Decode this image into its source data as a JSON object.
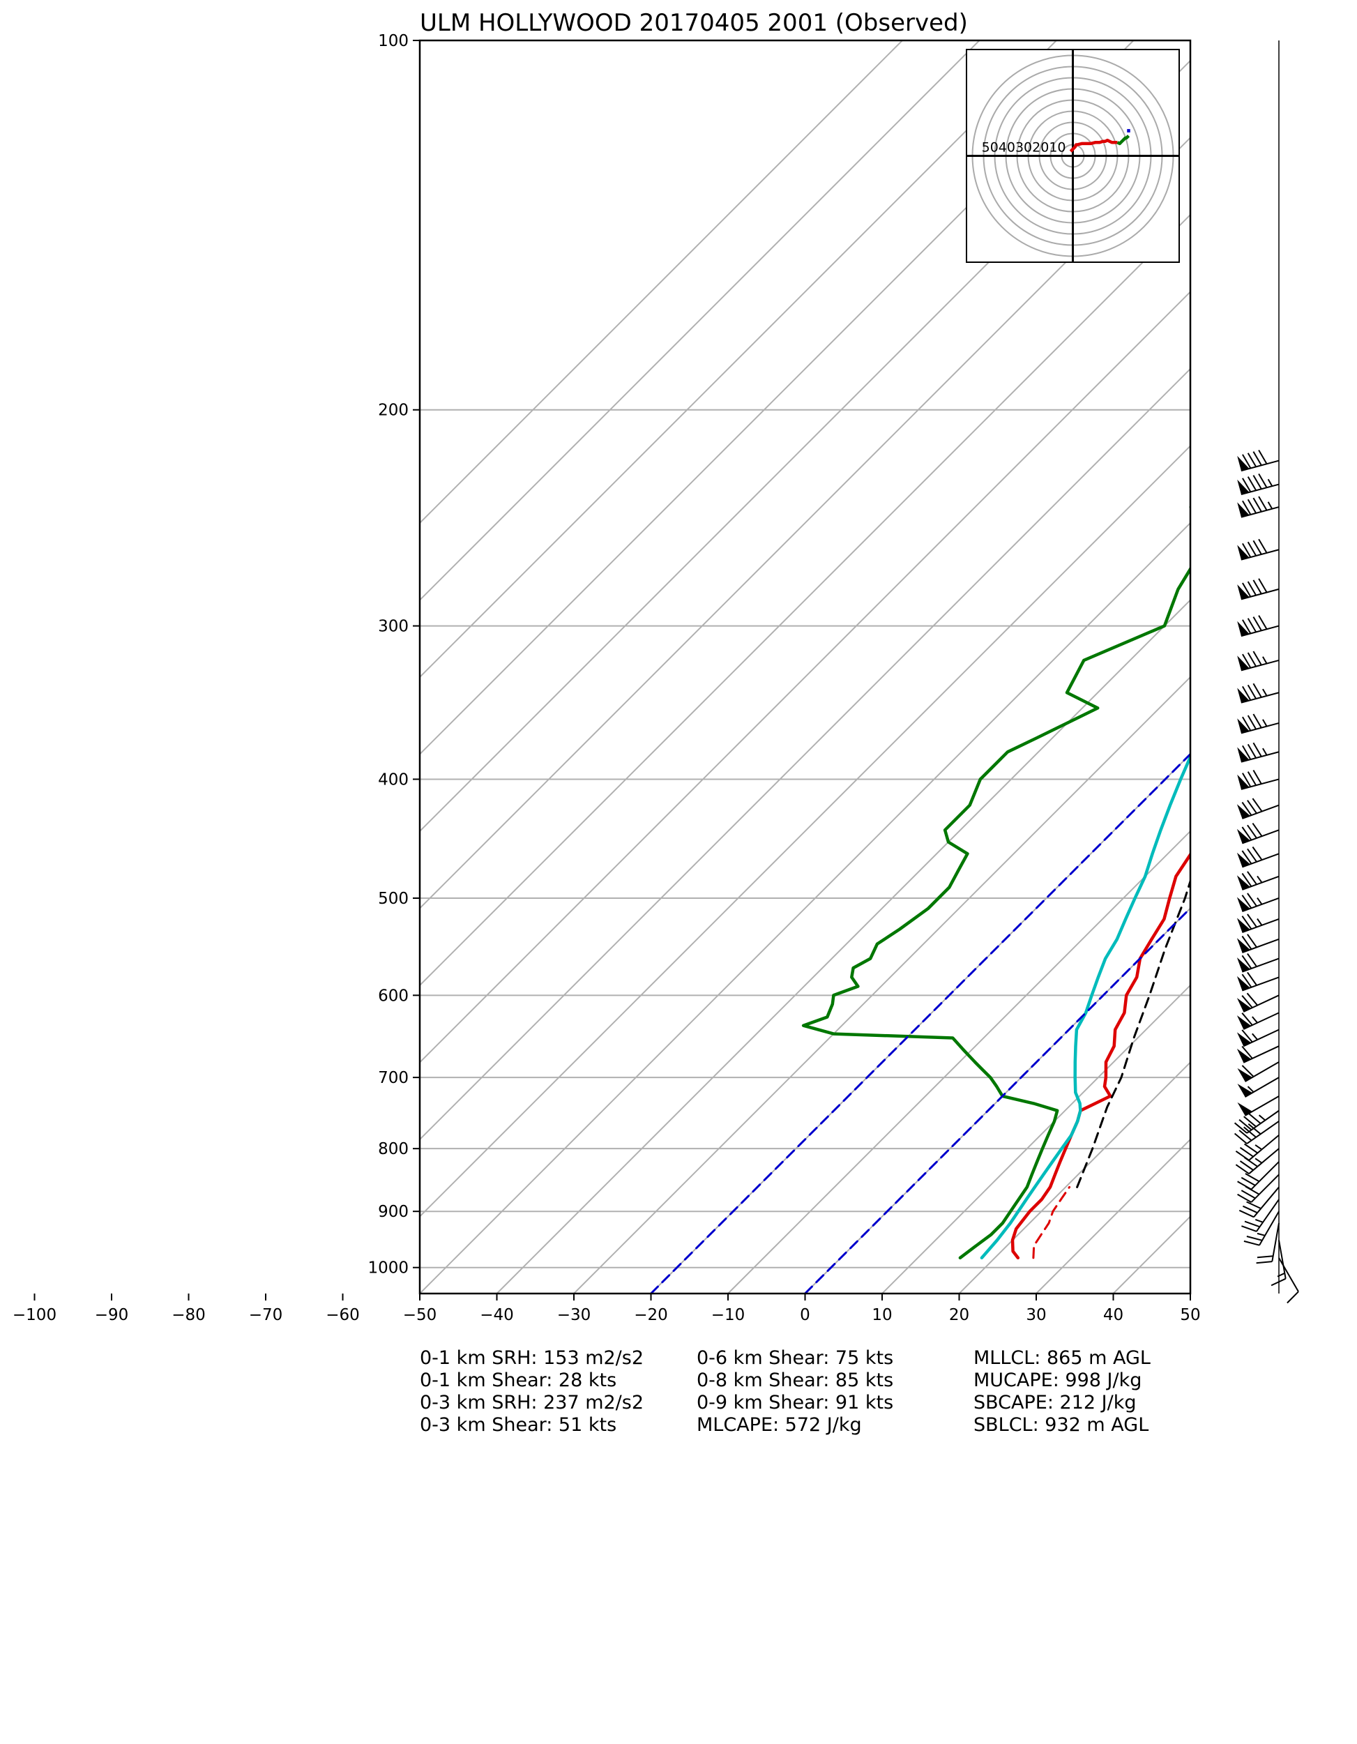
{
  "chart_data": {
    "type": "line",
    "title": "ULM HOLLYWOOD 20170405 2001   (Observed)",
    "x_ticks": [
      "−100",
      "−90",
      "−80",
      "−70",
      "−60",
      "−50",
      "−40",
      "−30",
      "−20",
      "−10",
      "0",
      "10",
      "20",
      "30",
      "40",
      "50"
    ],
    "y_ticks": [
      "100",
      "200",
      "300",
      "400",
      "500",
      "600",
      "700",
      "800",
      "900",
      "1000"
    ],
    "xlim": [
      -50,
      50
    ],
    "ylim": [
      1050,
      100
    ],
    "y_scale": "log",
    "skew_degrees": 45,
    "grid": true,
    "hodograph": {
      "ring_labels": [
        "50",
        "40",
        "30",
        "20",
        "10"
      ],
      "rings": [
        10,
        20,
        30,
        40,
        50,
        60,
        70,
        80,
        90
      ],
      "series": [
        {
          "color": "#dd0000",
          "u": [
            -2,
            0,
            2,
            3,
            4,
            8,
            12,
            16,
            20,
            24,
            27,
            29,
            31,
            33,
            35,
            38,
            40
          ],
          "v": [
            4,
            6,
            8,
            10,
            10,
            11,
            11,
            11,
            12,
            12,
            13,
            13,
            14,
            13,
            12,
            12,
            12
          ]
        },
        {
          "color": "#007700",
          "u": [
            40,
            42,
            43,
            44,
            45,
            46,
            47,
            48,
            49,
            50
          ],
          "v": [
            12,
            11,
            12,
            13,
            14,
            15,
            16,
            16,
            17,
            18
          ]
        },
        {
          "color": "#0000cc",
          "u": [
            50,
            50,
            50,
            50
          ],
          "v": [
            21,
            22,
            23,
            24
          ]
        }
      ]
    },
    "series": [
      {
        "color": "#dd0000",
        "style": "solid",
        "p": [
          982,
          970,
          950,
          930,
          900,
          880,
          860,
          840,
          820,
          800,
          780,
          760,
          745,
          735,
          725,
          712,
          700,
          680,
          660,
          640,
          620,
          600,
          580,
          560,
          540,
          520,
          500,
          480,
          460,
          440,
          420,
          400,
          380,
          360,
          340,
          320,
          300,
          280,
          260,
          240,
          220
        ],
        "t": [
          23,
          21.5,
          20,
          19,
          18.5,
          18.5,
          18,
          17,
          16,
          15,
          14,
          13,
          12,
          13,
          14,
          12,
          11,
          9,
          8,
          6,
          5,
          3,
          2,
          0,
          -1,
          -2,
          -4,
          -6,
          -7,
          -9,
          -11,
          -13,
          -15,
          -17,
          -19,
          -22,
          -25,
          -28,
          -32,
          -36,
          -40
        ]
      },
      {
        "color": "#00bbbb",
        "style": "solid",
        "p": [
          982,
          950,
          920,
          900,
          880,
          860,
          840,
          820,
          800,
          780,
          760,
          745,
          735,
          720,
          700,
          680,
          660,
          640,
          620,
          600,
          580,
          560,
          540,
          520,
          500,
          480,
          460,
          440,
          420,
          400,
          380,
          360,
          340,
          320,
          300,
          280,
          260,
          240,
          220
        ],
        "t": [
          18.3,
          18,
          17.5,
          17,
          16.5,
          16,
          15.5,
          15,
          14.5,
          14,
          13,
          12,
          11,
          9,
          7,
          5,
          3,
          1,
          0,
          -1.5,
          -3,
          -4.5,
          -5.5,
          -7,
          -8.5,
          -10,
          -12,
          -14,
          -16,
          -18,
          -20,
          -22,
          -24,
          -27,
          -30,
          -33,
          -37,
          -41,
          -45
        ]
      },
      {
        "color": "#007700",
        "style": "solid",
        "p": [
          982,
          960,
          940,
          920,
          900,
          880,
          860,
          840,
          820,
          800,
          780,
          760,
          745,
          735,
          725,
          712,
          700,
          690,
          680,
          665,
          650,
          645,
          635,
          625,
          610,
          600,
          590,
          580,
          570,
          560,
          545,
          530,
          510,
          490,
          475,
          460,
          450,
          440,
          420,
          400,
          390,
          380,
          370,
          350,
          340,
          320,
          300,
          280,
          260,
          250,
          240,
          230,
          220
        ],
        "t": [
          15.5,
          16,
          16.5,
          16.5,
          16,
          15.5,
          15,
          14,
          13,
          12,
          11,
          10,
          9,
          5,
          0,
          -2,
          -4,
          -6,
          -8,
          -11,
          -14,
          -30,
          -35,
          -33,
          -34,
          -35,
          -33,
          -35,
          -36,
          -35,
          -36,
          -35,
          -34,
          -34,
          -35,
          -36,
          -40,
          -42,
          -42,
          -44,
          -44,
          -44,
          -42,
          -38,
          -44,
          -46,
          -40,
          -43,
          -45,
          -48,
          -52,
          -53,
          -56
        ]
      },
      {
        "color": "#dd0000",
        "style": "dashed",
        "p": [
          982,
          960,
          940,
          920,
          900,
          880,
          860
        ],
        "t": [
          25,
          23.5,
          23,
          22.5,
          21.5,
          21,
          20.5
        ]
      },
      {
        "color": "#000000",
        "style": "dashed",
        "name": "parcel",
        "p": [
          860,
          800,
          740,
          700,
          650,
          600,
          550,
          500,
          450,
          400,
          350,
          300,
          250,
          220
        ],
        "t": [
          21.5,
          18.5,
          15,
          13,
          9.5,
          6,
          2,
          -2,
          -7,
          -12,
          -18,
          -25,
          -33,
          -38.5
        ]
      },
      {
        "color": "#0000cc",
        "style": "dashed",
        "name": "reference",
        "p": [
          1050,
          100
        ],
        "t": [
          -20,
          -20
        ]
      },
      {
        "color": "#0000cc",
        "style": "dashed",
        "name": "reference",
        "p": [
          1050,
          100
        ],
        "t": [
          0,
          0
        ]
      }
    ],
    "wind_barbs": {
      "p": [
        982,
        950,
        920,
        900,
        880,
        860,
        840,
        820,
        800,
        780,
        760,
        745,
        725,
        700,
        680,
        660,
        640,
        620,
        600,
        580,
        560,
        540,
        520,
        500,
        480,
        460,
        440,
        420,
        400,
        380,
        360,
        340,
        320,
        300,
        280,
        260,
        240,
        230,
        220
      ],
      "speed_kts": [
        10,
        15,
        20,
        25,
        25,
        30,
        30,
        30,
        35,
        35,
        40,
        45,
        50,
        55,
        60,
        60,
        65,
        65,
        70,
        70,
        70,
        70,
        75,
        75,
        75,
        80,
        80,
        80,
        80,
        85,
        85,
        85,
        85,
        90,
        90,
        90,
        95,
        95,
        90
      ],
      "dir_deg": [
        150,
        170,
        190,
        210,
        215,
        220,
        225,
        225,
        230,
        230,
        235,
        235,
        240,
        240,
        240,
        245,
        245,
        245,
        245,
        250,
        250,
        250,
        250,
        250,
        250,
        250,
        250,
        250,
        255,
        255,
        255,
        255,
        255,
        255,
        255,
        255,
        255,
        255,
        255
      ]
    }
  },
  "stats": {
    "col1": [
      "0-1 km SRH: 153 m2/s2",
      "0-1 km Shear: 28 kts",
      "0-3 km SRH: 237 m2/s2",
      "0-3 km Shear: 51 kts"
    ],
    "col2": [
      "0-6 km Shear: 75 kts",
      "0-8 km Shear: 85 kts",
      "0-9 km Shear: 91 kts",
      "MLCAPE: 572 J/kg"
    ],
    "col3": [
      "MLLCL: 865 m AGL",
      "MUCAPE: 998 J/kg",
      "SBCAPE: 212 J/kg",
      "SBLCL: 932 m AGL"
    ]
  }
}
